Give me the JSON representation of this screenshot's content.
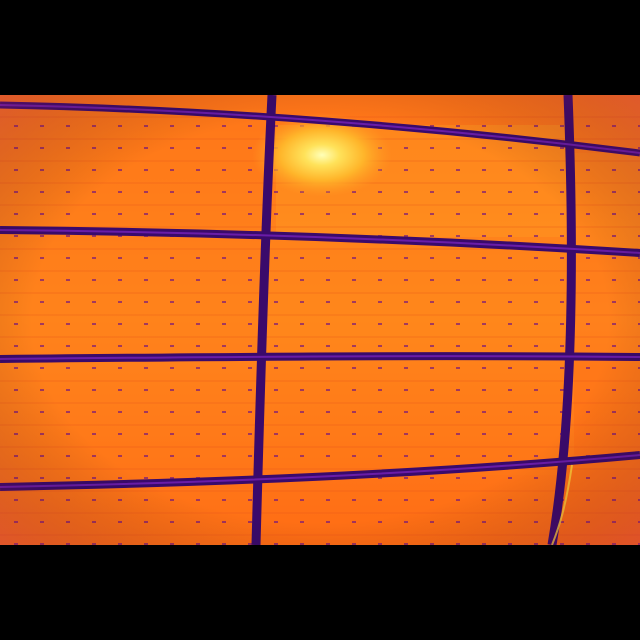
{
  "image": {
    "subject": "thermal-image-solar-panel-array",
    "palette": {
      "background": "#000000",
      "frame_gap": "#3a0a6b",
      "cell_hot": "#ff8a1e",
      "cell_warm": "#ff6a14",
      "cell_edge": "#f0401a",
      "hotspot_core": "#ffffb0",
      "hotspot_mid": "#ffd23a",
      "busbar_dot": "#7a1a7a"
    },
    "modules": {
      "rows": 4,
      "columns": 3
    },
    "hotspot_count": 1
  }
}
